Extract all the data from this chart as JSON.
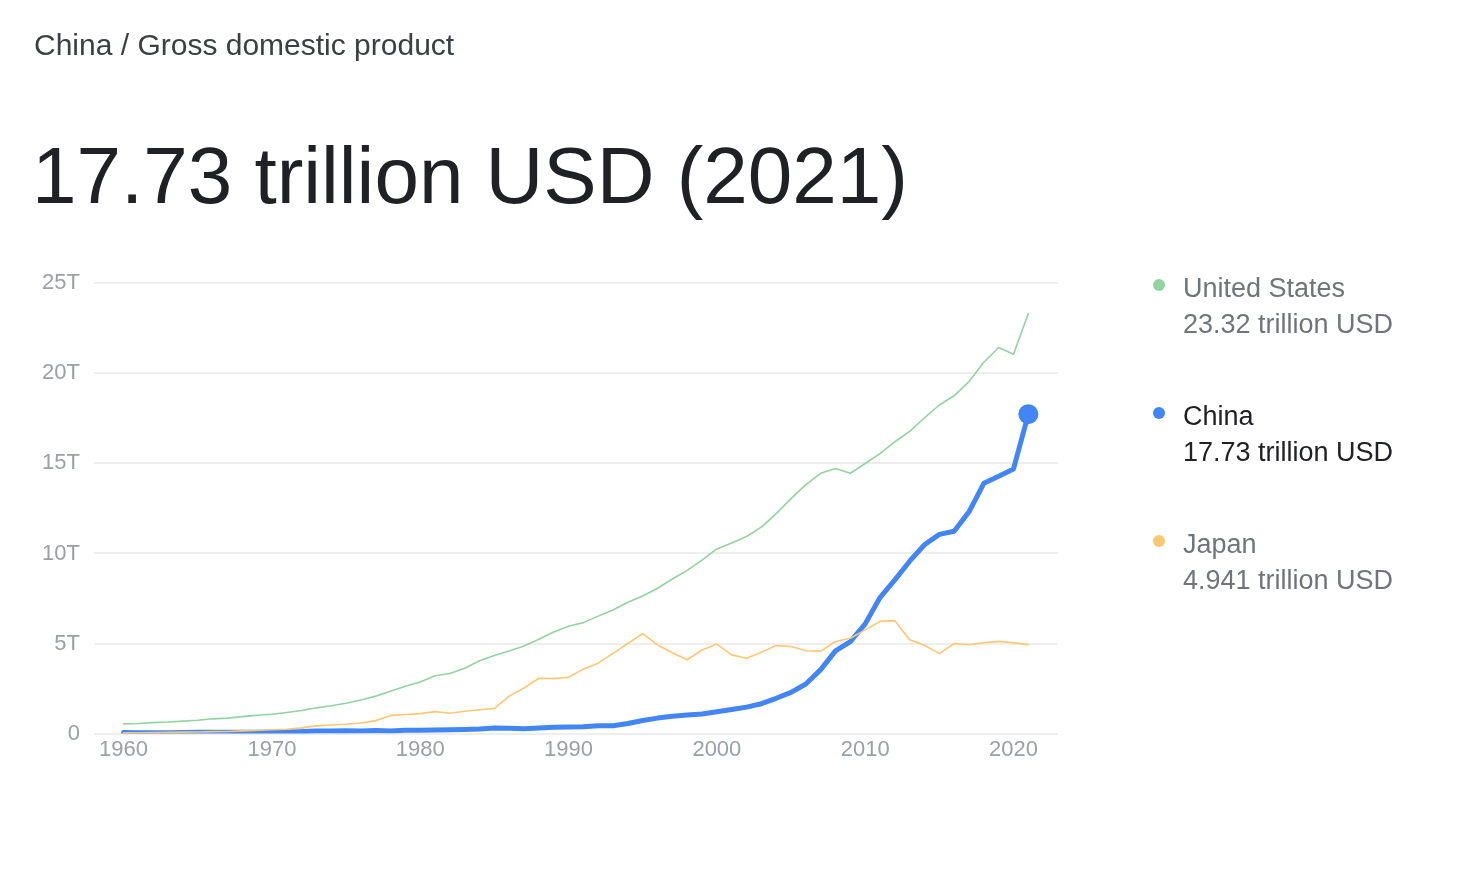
{
  "chart_data": {
    "type": "line",
    "title": "17.73 trillion USD (2021)",
    "annotations": [
      "China / Gross domestic product",
      "23.32 trillion USD",
      "17.73 trillion USD",
      "4.941 trillion USD"
    ],
    "x": [
      1960,
      1961,
      1962,
      1963,
      1964,
      1965,
      1966,
      1967,
      1968,
      1969,
      1970,
      1971,
      1972,
      1973,
      1974,
      1975,
      1976,
      1977,
      1978,
      1979,
      1980,
      1981,
      1982,
      1983,
      1984,
      1985,
      1986,
      1987,
      1988,
      1989,
      1990,
      1991,
      1992,
      1993,
      1994,
      1995,
      1996,
      1997,
      1998,
      1999,
      2000,
      2001,
      2002,
      2003,
      2004,
      2005,
      2006,
      2007,
      2008,
      2009,
      2010,
      2011,
      2012,
      2013,
      2014,
      2015,
      2016,
      2017,
      2018,
      2019,
      2020,
      2021
    ],
    "series": [
      {
        "name": "United States",
        "color": "#93d3a2",
        "values": [
          0.54,
          0.56,
          0.61,
          0.64,
          0.69,
          0.74,
          0.82,
          0.86,
          0.94,
          1.02,
          1.07,
          1.17,
          1.28,
          1.43,
          1.55,
          1.68,
          1.87,
          2.08,
          2.35,
          2.63,
          2.86,
          3.21,
          3.34,
          3.63,
          4.04,
          4.34,
          4.58,
          4.86,
          5.24,
          5.64,
          5.96,
          6.16,
          6.52,
          6.86,
          7.29,
          7.64,
          8.07,
          8.58,
          9.06,
          9.63,
          10.25,
          10.58,
          10.94,
          11.46,
          12.21,
          13.04,
          13.82,
          14.45,
          14.71,
          14.45,
          14.99,
          15.54,
          16.2,
          16.78,
          17.53,
          18.24,
          18.75,
          19.54,
          20.61,
          21.43,
          21.06,
          23.32
        ]
      },
      {
        "name": "China",
        "color": "#4285f4",
        "values": [
          0.06,
          0.05,
          0.05,
          0.05,
          0.06,
          0.07,
          0.08,
          0.07,
          0.07,
          0.08,
          0.09,
          0.1,
          0.11,
          0.14,
          0.14,
          0.16,
          0.15,
          0.17,
          0.15,
          0.18,
          0.19,
          0.2,
          0.21,
          0.23,
          0.26,
          0.31,
          0.3,
          0.27,
          0.31,
          0.35,
          0.36,
          0.38,
          0.43,
          0.44,
          0.56,
          0.73,
          0.86,
          0.96,
          1.03,
          1.09,
          1.21,
          1.34,
          1.47,
          1.66,
          1.96,
          2.29,
          2.75,
          3.55,
          4.59,
          5.1,
          6.09,
          7.55,
          8.53,
          9.57,
          10.48,
          11.06,
          11.23,
          12.31,
          13.89,
          14.28,
          14.69,
          17.73
        ]
      },
      {
        "name": "Japan",
        "color": "#fbc775",
        "values": [
          0.04,
          0.05,
          0.06,
          0.07,
          0.08,
          0.09,
          0.11,
          0.12,
          0.15,
          0.17,
          0.21,
          0.24,
          0.32,
          0.43,
          0.48,
          0.52,
          0.59,
          0.72,
          1.01,
          1.06,
          1.11,
          1.22,
          1.13,
          1.24,
          1.32,
          1.4,
          2.08,
          2.53,
          3.07,
          3.05,
          3.13,
          3.58,
          3.91,
          4.45,
          5.0,
          5.55,
          4.92,
          4.49,
          4.1,
          4.64,
          4.97,
          4.37,
          4.18,
          4.52,
          4.89,
          4.83,
          4.6,
          4.58,
          5.11,
          5.29,
          5.76,
          6.23,
          6.27,
          5.21,
          4.9,
          4.44,
          5.0,
          4.93,
          5.04,
          5.12,
          5.04,
          4.94
        ]
      },
      {
        "type": "scatter",
        "color": "#4285f4",
        "marker": "circle",
        "x": [
          2021
        ],
        "values": [
          17.73
        ]
      }
    ],
    "xlim": [
      1958,
      2023
    ],
    "xticks": [
      1960,
      1970,
      1980,
      1990,
      2000,
      2010,
      2020
    ],
    "ylim": [
      0,
      25
    ],
    "yticks": [
      0,
      {
        "value": 5,
        "label": "5T"
      },
      {
        "value": 10,
        "label": "10T"
      },
      {
        "value": 15,
        "label": "15T"
      },
      {
        "value": 20,
        "label": "20T"
      },
      {
        "value": 25,
        "label": "25T"
      }
    ],
    "grid": "y",
    "legend": "right"
  }
}
